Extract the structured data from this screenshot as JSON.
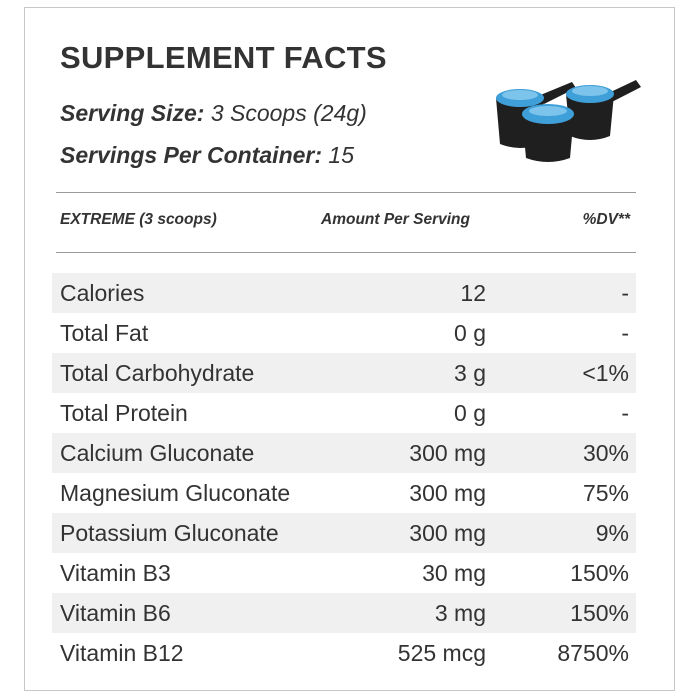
{
  "title": "SUPPLEMENT FACTS",
  "serving": {
    "size_label": "Serving Size:",
    "size_value": "3 Scoops (24g)",
    "per_container_label": "Servings Per Container:",
    "per_container_value": "15"
  },
  "icon": "scoops-icon",
  "colors": {
    "scoop_body": "#1f1f1f",
    "powder": "#3f9fd8",
    "text": "#333333",
    "row_shade": "#f0f0f0"
  },
  "header": {
    "col1": "EXTREME (3 scoops)",
    "col2": "Amount Per Serving",
    "col3": "%DV**"
  },
  "rows": [
    {
      "name": "Calories",
      "amount": "12",
      "dv": "-"
    },
    {
      "name": "Total Fat",
      "amount": "0 g",
      "dv": "-"
    },
    {
      "name": "Total Carbohydrate",
      "amount": "3 g",
      "dv": "<1%"
    },
    {
      "name": "Total Protein",
      "amount": "0 g",
      "dv": "-"
    },
    {
      "name": "Calcium Gluconate",
      "amount": "300 mg",
      "dv": "30%"
    },
    {
      "name": "Magnesium Gluconate",
      "amount": "300 mg",
      "dv": "75%"
    },
    {
      "name": "Potassium Gluconate",
      "amount": "300 mg",
      "dv": "9%"
    },
    {
      "name": "Vitamin B3",
      "amount": "30 mg",
      "dv": "150%"
    },
    {
      "name": "Vitamin B6",
      "amount": "3 mg",
      "dv": "150%"
    },
    {
      "name": "Vitamin B12",
      "amount": "525 mcg",
      "dv": "8750%"
    }
  ]
}
